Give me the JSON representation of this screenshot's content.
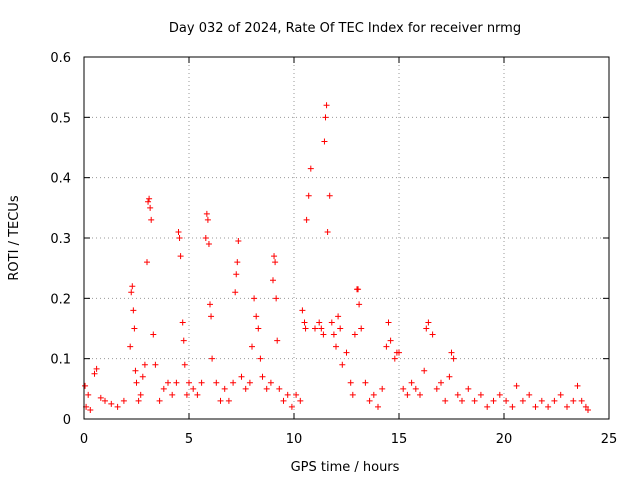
{
  "chart_data": {
    "type": "scatter",
    "title": "Day 032 of 2024, Rate Of TEC Index for receiver nrmg",
    "xlabel": "GPS time / hours",
    "ylabel": "ROTI / TECUs",
    "xlim": [
      0,
      25
    ],
    "ylim": [
      0,
      0.6
    ],
    "x_ticks": [
      "0",
      "5",
      "10",
      "15",
      "20",
      "25"
    ],
    "y_ticks": [
      "0",
      "0.1",
      "0.2",
      "0.3",
      "0.4",
      "0.5",
      "0.6"
    ],
    "grid": true,
    "legend": "none",
    "marker": "plus",
    "color": "#ff0000",
    "series": [
      {
        "x": [
          0.05,
          0.1,
          0.2,
          0.3,
          0.5,
          0.6,
          0.8,
          1.0,
          1.3,
          1.6,
          1.9,
          2.2,
          2.25,
          2.3,
          2.35,
          2.4,
          2.45,
          2.5,
          2.6,
          2.7,
          2.8,
          2.9,
          3.0,
          3.05,
          3.1,
          3.15,
          3.2,
          3.3,
          3.4,
          3.6,
          3.8,
          4.0,
          4.2,
          4.4,
          4.5,
          4.55,
          4.6,
          4.7,
          4.75,
          4.8,
          4.9,
          5.0,
          5.2,
          5.4,
          5.6,
          5.8,
          5.85,
          5.9,
          5.95,
          6.0,
          6.05,
          6.1,
          6.3,
          6.5,
          6.7,
          6.9,
          7.1,
          7.2,
          7.25,
          7.3,
          7.35,
          7.5,
          7.7,
          7.9,
          8.0,
          8.1,
          8.2,
          8.3,
          8.4,
          8.5,
          8.7,
          8.9,
          9.0,
          9.05,
          9.1,
          9.15,
          9.2,
          9.3,
          9.5,
          9.7,
          9.9,
          10.1,
          10.3,
          10.4,
          10.5,
          10.55,
          10.6,
          10.7,
          10.8,
          11.0,
          11.2,
          11.3,
          11.4,
          11.45,
          11.5,
          11.55,
          11.6,
          11.7,
          11.8,
          11.9,
          12.0,
          12.1,
          12.2,
          12.3,
          12.5,
          12.7,
          12.8,
          12.9,
          13.0,
          13.05,
          13.1,
          13.2,
          13.4,
          13.6,
          13.8,
          14.0,
          14.2,
          14.4,
          14.5,
          14.6,
          14.8,
          14.9,
          15.0,
          15.2,
          15.4,
          15.6,
          15.8,
          16.0,
          16.2,
          16.3,
          16.4,
          16.6,
          16.8,
          17.0,
          17.2,
          17.4,
          17.5,
          17.6,
          17.8,
          18.0,
          18.3,
          18.6,
          18.9,
          19.2,
          19.5,
          19.8,
          20.1,
          20.4,
          20.6,
          20.9,
          21.2,
          21.5,
          21.8,
          22.1,
          22.4,
          22.7,
          23.0,
          23.3,
          23.5,
          23.7,
          23.9,
          24.0
        ],
        "y": [
          0.055,
          0.02,
          0.04,
          0.015,
          0.075,
          0.083,
          0.035,
          0.03,
          0.025,
          0.02,
          0.03,
          0.12,
          0.21,
          0.22,
          0.18,
          0.15,
          0.08,
          0.06,
          0.03,
          0.04,
          0.07,
          0.09,
          0.26,
          0.36,
          0.365,
          0.35,
          0.33,
          0.14,
          0.09,
          0.03,
          0.05,
          0.06,
          0.04,
          0.06,
          0.31,
          0.3,
          0.27,
          0.16,
          0.13,
          0.09,
          0.04,
          0.06,
          0.05,
          0.04,
          0.06,
          0.3,
          0.34,
          0.33,
          0.29,
          0.19,
          0.17,
          0.1,
          0.06,
          0.03,
          0.05,
          0.03,
          0.06,
          0.21,
          0.24,
          0.26,
          0.295,
          0.07,
          0.05,
          0.06,
          0.12,
          0.2,
          0.17,
          0.15,
          0.1,
          0.07,
          0.05,
          0.06,
          0.23,
          0.27,
          0.26,
          0.2,
          0.13,
          0.05,
          0.03,
          0.04,
          0.02,
          0.04,
          0.03,
          0.18,
          0.16,
          0.15,
          0.33,
          0.37,
          0.415,
          0.15,
          0.16,
          0.15,
          0.14,
          0.46,
          0.5,
          0.52,
          0.31,
          0.37,
          0.16,
          0.14,
          0.12,
          0.17,
          0.15,
          0.09,
          0.11,
          0.06,
          0.04,
          0.14,
          0.215,
          0.215,
          0.19,
          0.15,
          0.06,
          0.03,
          0.04,
          0.02,
          0.05,
          0.12,
          0.16,
          0.13,
          0.1,
          0.11,
          0.11,
          0.05,
          0.04,
          0.06,
          0.05,
          0.04,
          0.08,
          0.15,
          0.16,
          0.14,
          0.05,
          0.06,
          0.03,
          0.07,
          0.11,
          0.1,
          0.04,
          0.03,
          0.05,
          0.03,
          0.04,
          0.02,
          0.03,
          0.04,
          0.03,
          0.02,
          0.055,
          0.03,
          0.04,
          0.02,
          0.03,
          0.02,
          0.03,
          0.04,
          0.02,
          0.03,
          0.055,
          0.03,
          0.02,
          0.015
        ]
      }
    ]
  }
}
